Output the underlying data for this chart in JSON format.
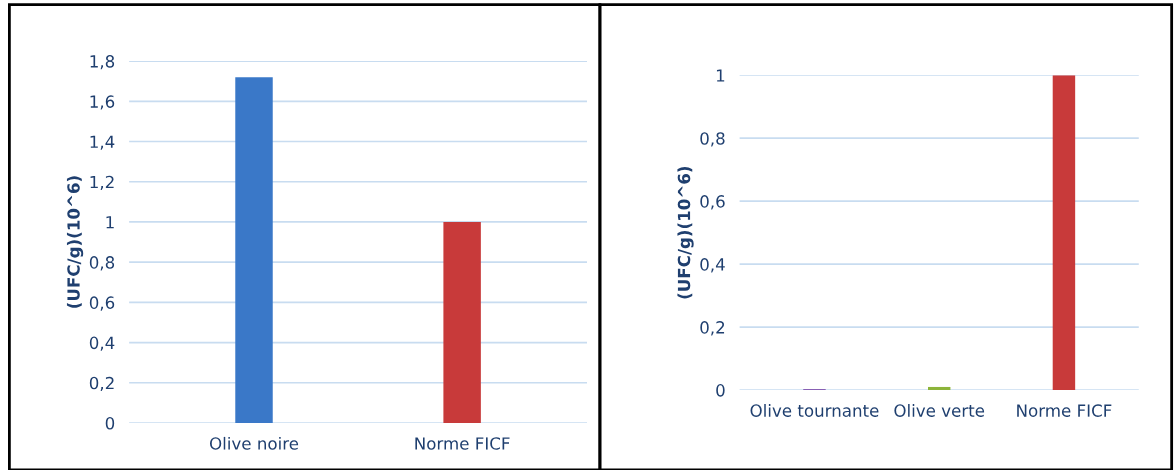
{
  "chart_data": [
    {
      "type": "bar",
      "ylabel": "(UFC/g)(10^6)",
      "categories": [
        "Olive noire",
        "Norme FICF"
      ],
      "colors": [
        "#3a78c8",
        "#c83a3a"
      ],
      "values": [
        1.72,
        1.0
      ],
      "ylim": [
        0,
        1.8
      ],
      "yticks": [
        0,
        {
          "value": 0.2,
          "label": "0,2"
        },
        {
          "value": 0.4,
          "label": "0,4"
        },
        {
          "value": 0.6,
          "label": "0,6"
        },
        {
          "value": 0.8,
          "label": "0,8"
        },
        1,
        {
          "value": 1.2,
          "label": "1,2"
        },
        {
          "value": 1.4,
          "label": "1,4"
        },
        {
          "value": 1.6,
          "label": "1,6"
        },
        {
          "value": 1.8,
          "label": "1,8"
        }
      ],
      "grid": "y"
    },
    {
      "type": "bar",
      "ylabel": "(UFC/g)(10^6)",
      "categories": [
        "Olive tournante",
        "Olive verte",
        "Norme FICF"
      ],
      "colors": [
        "#7a48a8",
        "#8cb43a",
        "#c83a3a"
      ],
      "values": [
        0.003,
        0.01,
        1.0
      ],
      "ylim": [
        0,
        1
      ],
      "yticks": [
        0,
        {
          "value": 0.2,
          "label": "0,2"
        },
        {
          "value": 0.4,
          "label": "0,4"
        },
        {
          "value": 0.6,
          "label": "0,6"
        },
        {
          "value": 0.8,
          "label": "0,8"
        },
        1
      ],
      "grid": "y"
    }
  ]
}
